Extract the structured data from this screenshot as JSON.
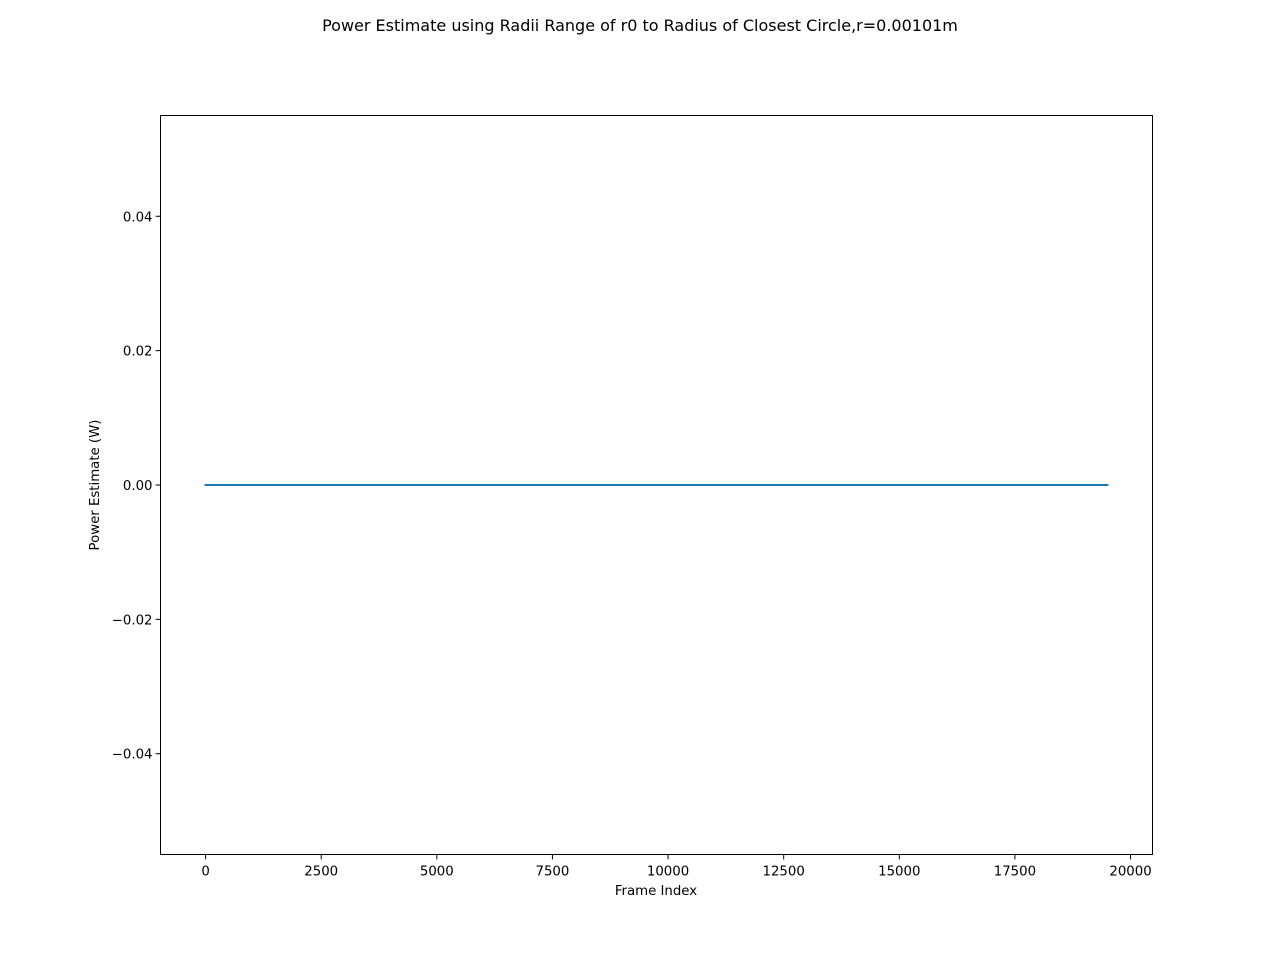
{
  "chart_data": {
    "type": "line",
    "title": "Power Estimate using Radii Range of r0 to Radius of Closest Circle,r=0.00101m",
    "xlabel": "Frame Index",
    "ylabel": "Power Estimate (W)",
    "xlim": [
      -975,
      20475
    ],
    "ylim": [
      -0.055,
      0.055
    ],
    "xticks": [
      0,
      2500,
      5000,
      7500,
      10000,
      12500,
      15000,
      17500,
      20000
    ],
    "xtick_labels": [
      "0",
      "2500",
      "5000",
      "7500",
      "10000",
      "12500",
      "15000",
      "17500",
      "20000"
    ],
    "yticks": [
      -0.04,
      -0.02,
      0.0,
      0.02,
      0.04
    ],
    "ytick_labels": [
      "−0.04",
      "−0.02",
      "0.00",
      "0.02",
      "0.04"
    ],
    "grid": false,
    "series": [
      {
        "color": "#1f77b4",
        "x": [
          0,
          19500
        ],
        "y": [
          0.0,
          0.0
        ]
      }
    ]
  }
}
